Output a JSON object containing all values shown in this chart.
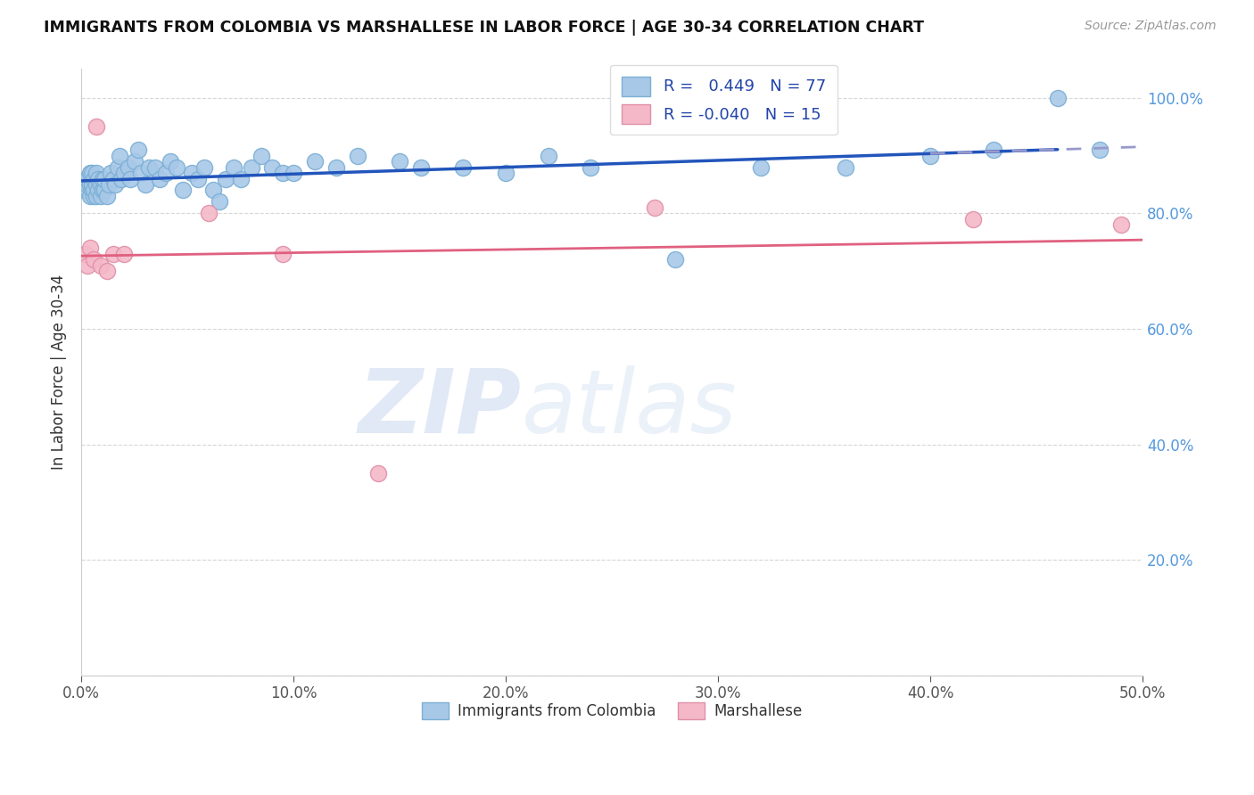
{
  "title": "IMMIGRANTS FROM COLOMBIA VS MARSHALLESE IN LABOR FORCE | AGE 30-34 CORRELATION CHART",
  "source": "Source: ZipAtlas.com",
  "ylabel": "In Labor Force | Age 30-34",
  "xlim": [
    0.0,
    0.5
  ],
  "ylim": [
    0.0,
    1.05
  ],
  "xticks": [
    0.0,
    0.1,
    0.2,
    0.3,
    0.4,
    0.5
  ],
  "xtick_labels": [
    "0.0%",
    "10.0%",
    "20.0%",
    "30.0%",
    "40.0%",
    "50.0%"
  ],
  "yticks": [
    0.0,
    0.2,
    0.4,
    0.6,
    0.8,
    1.0
  ],
  "ytick_labels_right": [
    "",
    "20.0%",
    "40.0%",
    "60.0%",
    "80.0%",
    "100.0%"
  ],
  "colombia_color": "#a8c8e8",
  "colombia_edge": "#7bafd4",
  "marshallese_color": "#f4b8c8",
  "marshallese_edge": "#e090a8",
  "trendline_colombia_color": "#2255bb",
  "trendline_marshallese_color": "#e06080",
  "trendline_dashed_color": "#9999cc",
  "legend_r_colombia": "0.449",
  "legend_n_colombia": "77",
  "legend_r_marshallese": "-0.040",
  "legend_n_marshallese": "15",
  "legend_label_colombia": "Immigrants from Colombia",
  "legend_label_marshallese": "Marshallese",
  "colombia_x": [
    0.001,
    0.002,
    0.002,
    0.003,
    0.003,
    0.003,
    0.004,
    0.004,
    0.004,
    0.005,
    0.005,
    0.005,
    0.006,
    0.006,
    0.006,
    0.007,
    0.007,
    0.007,
    0.008,
    0.008,
    0.009,
    0.009,
    0.01,
    0.01,
    0.011,
    0.011,
    0.012,
    0.013,
    0.014,
    0.015,
    0.016,
    0.017,
    0.018,
    0.019,
    0.02,
    0.022,
    0.023,
    0.025,
    0.027,
    0.028,
    0.03,
    0.032,
    0.035,
    0.037,
    0.04,
    0.042,
    0.045,
    0.048,
    0.052,
    0.055,
    0.058,
    0.062,
    0.065,
    0.068,
    0.072,
    0.075,
    0.08,
    0.085,
    0.09,
    0.095,
    0.1,
    0.11,
    0.12,
    0.13,
    0.15,
    0.16,
    0.18,
    0.2,
    0.22,
    0.24,
    0.28,
    0.32,
    0.36,
    0.4,
    0.43,
    0.46,
    0.48
  ],
  "colombia_y": [
    0.84,
    0.85,
    0.86,
    0.84,
    0.85,
    0.86,
    0.83,
    0.85,
    0.87,
    0.84,
    0.85,
    0.87,
    0.83,
    0.84,
    0.86,
    0.83,
    0.85,
    0.87,
    0.84,
    0.86,
    0.83,
    0.85,
    0.84,
    0.86,
    0.84,
    0.86,
    0.83,
    0.85,
    0.87,
    0.86,
    0.85,
    0.88,
    0.9,
    0.86,
    0.87,
    0.88,
    0.86,
    0.89,
    0.91,
    0.87,
    0.85,
    0.88,
    0.88,
    0.86,
    0.87,
    0.89,
    0.88,
    0.84,
    0.87,
    0.86,
    0.88,
    0.84,
    0.82,
    0.86,
    0.88,
    0.86,
    0.88,
    0.9,
    0.88,
    0.87,
    0.87,
    0.89,
    0.88,
    0.9,
    0.89,
    0.88,
    0.88,
    0.87,
    0.9,
    0.88,
    0.72,
    0.88,
    0.88,
    0.9,
    0.91,
    1.0,
    0.91
  ],
  "marshallese_x": [
    0.002,
    0.003,
    0.004,
    0.006,
    0.007,
    0.009,
    0.012,
    0.015,
    0.02,
    0.06,
    0.095,
    0.14,
    0.27,
    0.42,
    0.49
  ],
  "marshallese_y": [
    0.73,
    0.71,
    0.74,
    0.72,
    0.95,
    0.71,
    0.7,
    0.73,
    0.73,
    0.8,
    0.73,
    0.35,
    0.81,
    0.79,
    0.78
  ]
}
